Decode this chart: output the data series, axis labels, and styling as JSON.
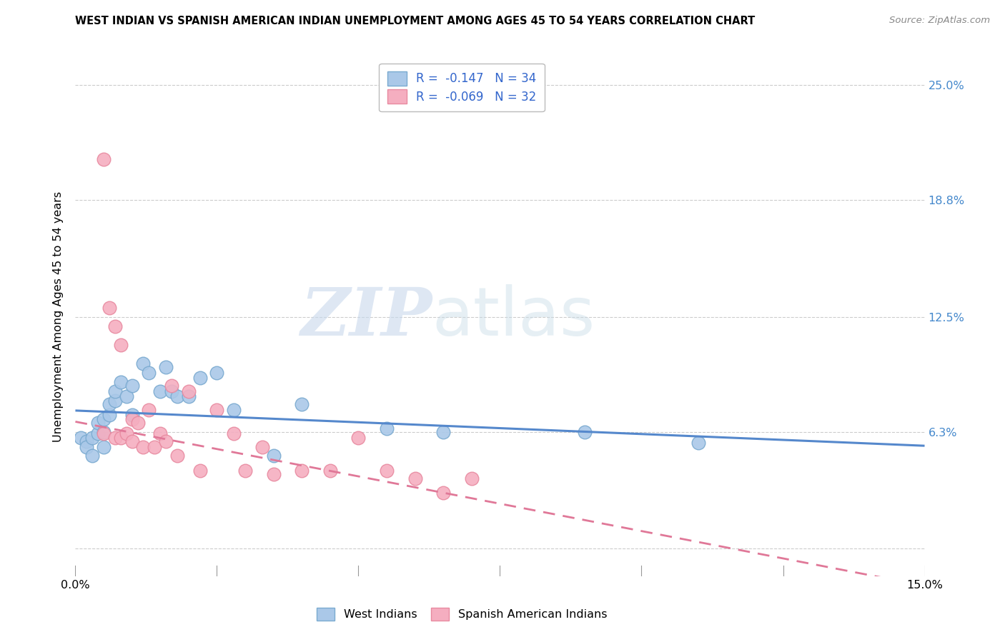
{
  "title": "WEST INDIAN VS SPANISH AMERICAN INDIAN UNEMPLOYMENT AMONG AGES 45 TO 54 YEARS CORRELATION CHART",
  "source": "Source: ZipAtlas.com",
  "ylabel": "Unemployment Among Ages 45 to 54 years",
  "xlim": [
    0.0,
    0.15
  ],
  "ylim": [
    -0.015,
    0.265
  ],
  "xticks": [
    0.0,
    0.025,
    0.05,
    0.075,
    0.1,
    0.125,
    0.15
  ],
  "ytick_positions": [
    0.0,
    0.063,
    0.125,
    0.188,
    0.25
  ],
  "right_ytick_positions": [
    0.063,
    0.125,
    0.188,
    0.25
  ],
  "right_ytick_labels": [
    "6.3%",
    "12.5%",
    "18.8%",
    "25.0%"
  ],
  "watermark_zip": "ZIP",
  "watermark_atlas": "atlas",
  "legend_r1": "R =  -0.147",
  "legend_n1": "N = 34",
  "legend_r2": "R =  -0.069",
  "legend_n2": "N = 32",
  "legend_label1": "West Indians",
  "legend_label2": "Spanish American Indians",
  "west_indian_color": "#aac8e8",
  "spanish_color": "#f5aec0",
  "west_indian_edge_color": "#7aaad0",
  "spanish_edge_color": "#e88aa0",
  "west_indian_line_color": "#5588cc",
  "spanish_line_color": "#e07898",
  "west_indian_x": [
    0.001,
    0.002,
    0.002,
    0.003,
    0.003,
    0.004,
    0.004,
    0.005,
    0.005,
    0.005,
    0.006,
    0.006,
    0.007,
    0.007,
    0.008,
    0.009,
    0.01,
    0.01,
    0.012,
    0.013,
    0.015,
    0.016,
    0.017,
    0.018,
    0.02,
    0.022,
    0.025,
    0.028,
    0.035,
    0.04,
    0.055,
    0.065,
    0.09,
    0.11
  ],
  "west_indian_y": [
    0.06,
    0.058,
    0.055,
    0.06,
    0.05,
    0.062,
    0.068,
    0.063,
    0.07,
    0.055,
    0.072,
    0.078,
    0.08,
    0.085,
    0.09,
    0.082,
    0.088,
    0.072,
    0.1,
    0.095,
    0.085,
    0.098,
    0.085,
    0.082,
    0.082,
    0.092,
    0.095,
    0.075,
    0.05,
    0.078,
    0.065,
    0.063,
    0.063,
    0.057
  ],
  "spanish_x": [
    0.005,
    0.005,
    0.006,
    0.007,
    0.007,
    0.008,
    0.008,
    0.009,
    0.01,
    0.01,
    0.011,
    0.012,
    0.013,
    0.014,
    0.015,
    0.016,
    0.017,
    0.018,
    0.02,
    0.022,
    0.025,
    0.028,
    0.03,
    0.033,
    0.035,
    0.04,
    0.045,
    0.05,
    0.055,
    0.06,
    0.065,
    0.07
  ],
  "spanish_y": [
    0.21,
    0.062,
    0.13,
    0.12,
    0.06,
    0.11,
    0.06,
    0.062,
    0.058,
    0.07,
    0.068,
    0.055,
    0.075,
    0.055,
    0.062,
    0.058,
    0.088,
    0.05,
    0.085,
    0.042,
    0.075,
    0.062,
    0.042,
    0.055,
    0.04,
    0.042,
    0.042,
    0.06,
    0.042,
    0.038,
    0.03,
    0.038
  ],
  "west_line_y0": 0.0745,
  "west_line_y1": 0.0555,
  "spanish_line_y0": 0.0685,
  "spanish_line_y1": -0.02
}
